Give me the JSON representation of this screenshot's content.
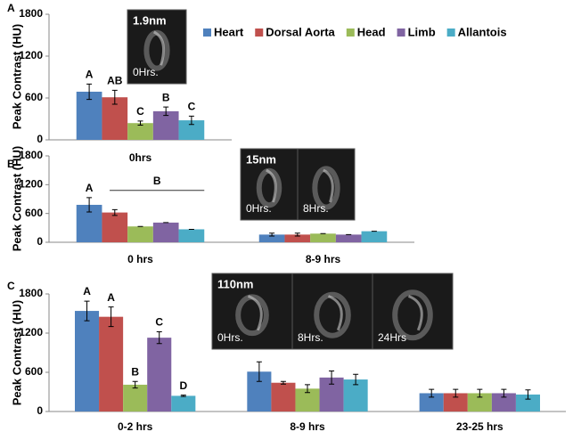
{
  "chart_data": [
    {
      "type": "bar",
      "panel": "A",
      "ylabel": "Peak Contrast (HU)",
      "categories": [
        "0hrs"
      ],
      "ylim": [
        0,
        1800
      ],
      "yticks": [
        0,
        600,
        1200,
        1800
      ],
      "legend": "top-right",
      "inset": {
        "title": "1.9nm",
        "frames": [
          "0Hrs."
        ]
      },
      "series": [
        {
          "name": "Heart",
          "color": "#4f81bd",
          "values": [
            690
          ],
          "errors": [
            110
          ],
          "letters": [
            "A"
          ]
        },
        {
          "name": "Dorsal Aorta",
          "color": "#c0504d",
          "values": [
            610
          ],
          "errors": [
            100
          ],
          "letters": [
            "AB"
          ]
        },
        {
          "name": "Head",
          "color": "#9bbb59",
          "values": [
            240
          ],
          "errors": [
            30
          ],
          "letters": [
            "C"
          ]
        },
        {
          "name": "Limb",
          "color": "#8064a2",
          "values": [
            410
          ],
          "errors": [
            60
          ],
          "letters": [
            "B"
          ]
        },
        {
          "name": "Allantois",
          "color": "#4bacc6",
          "values": [
            280
          ],
          "errors": [
            60
          ],
          "letters": [
            "C"
          ]
        }
      ]
    },
    {
      "type": "bar",
      "panel": "B",
      "ylabel": "Peak Contrast (HU)",
      "categories": [
        "0 hrs",
        "8-9 hrs"
      ],
      "ylim": [
        0,
        1800
      ],
      "yticks": [
        0,
        600,
        1200,
        1800
      ],
      "span_label": "B",
      "inset": {
        "title": "15nm",
        "frames": [
          "0Hrs.",
          "8Hrs."
        ]
      },
      "series": [
        {
          "name": "Heart",
          "color": "#4f81bd",
          "values": [
            780,
            160
          ],
          "errors": [
            150,
            30
          ],
          "letters": [
            "A",
            null
          ]
        },
        {
          "name": "Dorsal Aorta",
          "color": "#c0504d",
          "values": [
            620,
            160
          ],
          "errors": [
            60,
            30
          ],
          "letters": [
            null,
            null
          ]
        },
        {
          "name": "Head",
          "color": "#9bbb59",
          "values": [
            330,
            180
          ],
          "errors": [
            0,
            0
          ],
          "letters": [
            null,
            null
          ]
        },
        {
          "name": "Limb",
          "color": "#8064a2",
          "values": [
            410,
            160
          ],
          "errors": [
            0,
            0
          ],
          "letters": [
            null,
            null
          ]
        },
        {
          "name": "Allantois",
          "color": "#4bacc6",
          "values": [
            270,
            230
          ],
          "errors": [
            0,
            0
          ],
          "letters": [
            null,
            null
          ]
        }
      ]
    },
    {
      "type": "bar",
      "panel": "C",
      "ylabel": "Peak Contrast (HU)",
      "categories": [
        "0-2 hrs",
        "8-9 hrs",
        "23-25 hrs"
      ],
      "ylim": [
        0,
        1800
      ],
      "yticks": [
        0,
        600,
        1200,
        1800
      ],
      "inset": {
        "title": "110nm",
        "frames": [
          "0Hrs.",
          "8Hrs.",
          "24Hrs"
        ]
      },
      "series": [
        {
          "name": "Heart",
          "color": "#4f81bd",
          "values": [
            1540,
            610,
            280
          ],
          "errors": [
            150,
            150,
            60
          ],
          "letters": [
            "A",
            null,
            null
          ]
        },
        {
          "name": "Dorsal Aorta",
          "color": "#c0504d",
          "values": [
            1450,
            440,
            280
          ],
          "errors": [
            150,
            20,
            60
          ],
          "letters": [
            "A",
            null,
            null
          ]
        },
        {
          "name": "Head",
          "color": "#9bbb59",
          "values": [
            410,
            350,
            280
          ],
          "errors": [
            50,
            60,
            60
          ],
          "letters": [
            "B",
            null,
            null
          ]
        },
        {
          "name": "Limb",
          "color": "#8064a2",
          "values": [
            1130,
            520,
            280
          ],
          "errors": [
            90,
            100,
            60
          ],
          "letters": [
            "C",
            null,
            null
          ]
        },
        {
          "name": "Allantois",
          "color": "#4bacc6",
          "values": [
            240,
            490,
            260
          ],
          "errors": [
            10,
            80,
            70
          ],
          "letters": [
            "D",
            null,
            null
          ]
        }
      ]
    }
  ]
}
